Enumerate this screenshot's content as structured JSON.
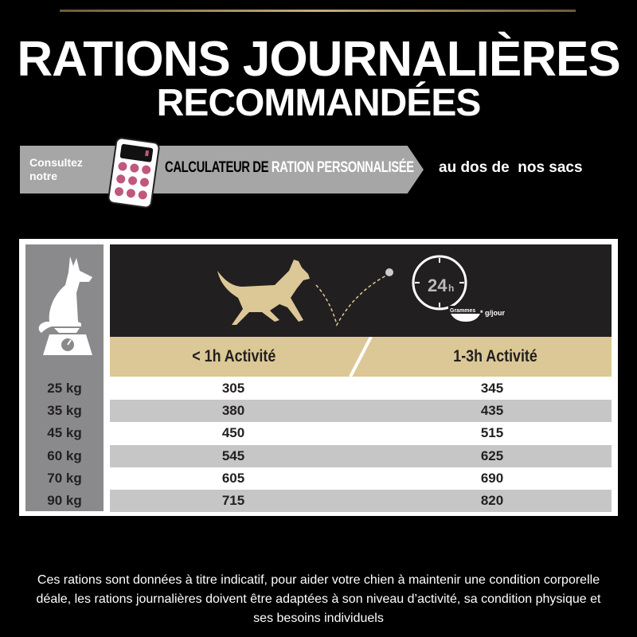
{
  "title_line1": "RATIONS JOURNALIÈRES",
  "title_line2": "RECOMMANDÉES",
  "banner": {
    "consult_line1": "Consultez",
    "consult_line2": "notre",
    "calc_part1": "CALCULATEUR DE ",
    "calc_part2": "RATION PERSONNALISÉE",
    "after": "au dos de  nos sacs"
  },
  "header": {
    "clock_label": "24",
    "clock_unit": "h",
    "bowl_label": "Grammes",
    "unit_note": "* g/jour"
  },
  "columns": [
    "< 1h Activité",
    "1-3h Activité"
  ],
  "rows": [
    {
      "weight": "25 kg",
      "low": "305",
      "high": "345"
    },
    {
      "weight": "35 kg",
      "low": "380",
      "high": "435"
    },
    {
      "weight": "45 kg",
      "low": "450",
      "high": "515"
    },
    {
      "weight": "60 kg",
      "low": "545",
      "high": "625"
    },
    {
      "weight": "70 kg",
      "low": "605",
      "high": "690"
    },
    {
      "weight": "90 kg",
      "low": "715",
      "high": "820"
    }
  ],
  "footer": [
    "Ces rations sont données à titre indicatif, pour aider votre chien à maintenir une condition corporelle",
    "déale, les rations journalières doivent être adaptées à son niveau d’activité, sa condition physique et",
    "ses besoins individuels"
  ],
  "colors": {
    "gold": "#dcc896",
    "dark": "#221f20",
    "gray": "#8a8a8c",
    "calc_button": "#c0587e"
  }
}
